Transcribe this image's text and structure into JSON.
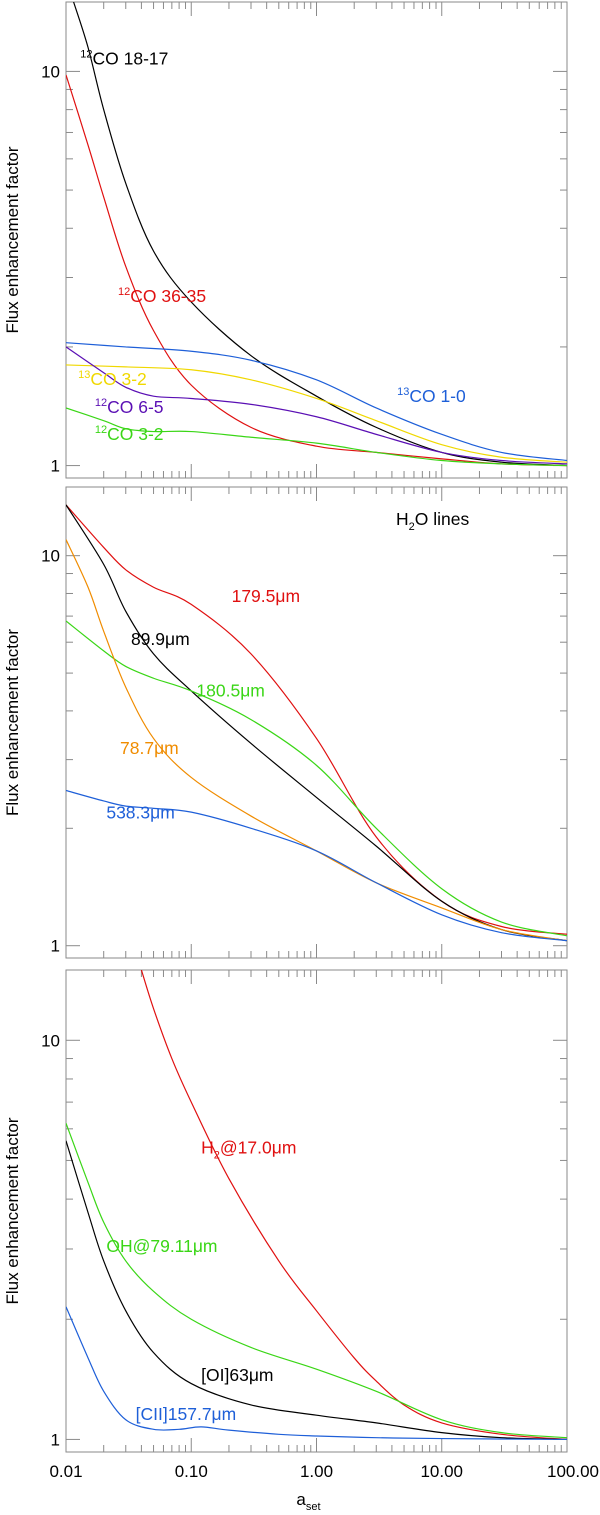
{
  "chart_data": [
    {
      "type": "line",
      "panel": "top",
      "title": "",
      "ylabel": "Flux enhancement factor",
      "xlabel": "",
      "xscale": "log",
      "yscale": "log",
      "xlim": [
        0.01,
        100
      ],
      "ylim": [
        0.93,
        15
      ],
      "yticks": [
        "1",
        "10"
      ],
      "colors": {
        "black": "#000000",
        "red": "#e01010",
        "blue": "#1e5fd8",
        "yellow": "#f0d800",
        "purple": "#5a0fb4",
        "green": "#3ad616",
        "orange": "#f08c00"
      },
      "series": [
        {
          "name": "12CO 18-17",
          "label_parts": [
            {
              "t": "12",
              "s": "sup"
            },
            {
              "t": "CO 18-17"
            }
          ],
          "color": "#000000",
          "x": [
            0.0115,
            0.015,
            0.02,
            0.03,
            0.05,
            0.1,
            0.3,
            1,
            3,
            10,
            30,
            100
          ],
          "y": [
            15,
            11.5,
            8,
            5.2,
            3.5,
            2.6,
            1.9,
            1.5,
            1.25,
            1.08,
            1.02,
            1.0
          ]
        },
        {
          "name": "12CO 36-35",
          "label_parts": [
            {
              "t": "12",
              "s": "sup"
            },
            {
              "t": "CO 36-35"
            }
          ],
          "color": "#e01010",
          "x": [
            0.01,
            0.015,
            0.02,
            0.03,
            0.05,
            0.1,
            0.3,
            1,
            3,
            10,
            30,
            100
          ],
          "y": [
            9.8,
            6.5,
            4.8,
            3.2,
            2.2,
            1.6,
            1.25,
            1.12,
            1.08,
            1.04,
            1.01,
            1.0
          ]
        },
        {
          "name": "13CO 1-0",
          "label_parts": [
            {
              "t": "13",
              "s": "sup"
            },
            {
              "t": "CO 1-0"
            }
          ],
          "color": "#1e5fd8",
          "x": [
            0.01,
            0.03,
            0.1,
            0.3,
            1,
            3,
            10,
            30,
            100
          ],
          "y": [
            2.05,
            2.0,
            1.95,
            1.85,
            1.65,
            1.4,
            1.2,
            1.08,
            1.03
          ]
        },
        {
          "name": "13CO 3-2",
          "label_parts": [
            {
              "t": "13",
              "s": "sup"
            },
            {
              "t": "CO 3-2"
            }
          ],
          "color": "#f0d800",
          "x": [
            0.01,
            0.03,
            0.1,
            0.3,
            1,
            3,
            10,
            30,
            100
          ],
          "y": [
            1.8,
            1.78,
            1.75,
            1.65,
            1.48,
            1.3,
            1.13,
            1.05,
            1.02
          ]
        },
        {
          "name": "12CO 6-5",
          "label_parts": [
            {
              "t": "12",
              "s": "sup"
            },
            {
              "t": "CO 6-5"
            }
          ],
          "color": "#5a0fb4",
          "x": [
            0.01,
            0.02,
            0.03,
            0.05,
            0.1,
            0.3,
            1,
            3,
            10,
            30,
            100
          ],
          "y": [
            2.0,
            1.72,
            1.58,
            1.5,
            1.48,
            1.43,
            1.33,
            1.2,
            1.08,
            1.03,
            1.01
          ]
        },
        {
          "name": "12CO 3-2",
          "label_parts": [
            {
              "t": "12",
              "s": "sup"
            },
            {
              "t": "CO 3-2"
            }
          ],
          "color": "#3ad616",
          "x": [
            0.01,
            0.02,
            0.03,
            0.05,
            0.1,
            0.3,
            1,
            3,
            10,
            30,
            100
          ],
          "y": [
            1.4,
            1.3,
            1.24,
            1.22,
            1.22,
            1.18,
            1.14,
            1.08,
            1.03,
            1.01,
            1.0
          ]
        }
      ],
      "labels": [
        {
          "series": "12CO 18-17",
          "x": 0.013,
          "y": 10.4
        },
        {
          "series": "12CO 36-35",
          "x": 0.026,
          "y": 2.6
        },
        {
          "series": "13CO 3-2",
          "x": 0.0125,
          "y": 1.6
        },
        {
          "series": "12CO 6-5",
          "x": 0.017,
          "y": 1.36
        },
        {
          "series": "12CO 3-2",
          "x": 0.017,
          "y": 1.16
        },
        {
          "series": "13CO 1-0",
          "x": 4.4,
          "y": 1.45
        }
      ]
    },
    {
      "type": "line",
      "panel": "middle",
      "title": "",
      "annotation_parts": [
        {
          "t": "H"
        },
        {
          "t": "2",
          "s": "sub"
        },
        {
          "t": "O lines"
        }
      ],
      "ylabel": "Flux enhancement factor",
      "xlabel": "",
      "xscale": "log",
      "yscale": "log",
      "xlim": [
        0.01,
        100
      ],
      "ylim": [
        0.93,
        15
      ],
      "yticks": [
        "1",
        "10"
      ],
      "series": [
        {
          "name": "179.5μm",
          "label_parts": [
            {
              "t": "179.5μm"
            }
          ],
          "color": "#e01010",
          "x": [
            0.01,
            0.02,
            0.03,
            0.05,
            0.1,
            0.3,
            1,
            3,
            10,
            30,
            100
          ],
          "y": [
            13.5,
            10.5,
            9.2,
            8.3,
            7.5,
            5.6,
            3.4,
            1.9,
            1.3,
            1.12,
            1.07
          ]
        },
        {
          "name": "89.9μm",
          "label_parts": [
            {
              "t": "89.9μm"
            }
          ],
          "color": "#000000",
          "x": [
            0.01,
            0.02,
            0.03,
            0.05,
            0.1,
            0.3,
            1,
            3,
            10,
            30,
            100
          ],
          "y": [
            13.5,
            9.5,
            7.2,
            5.6,
            4.5,
            3.3,
            2.4,
            1.8,
            1.3,
            1.1,
            1.03
          ]
        },
        {
          "name": "180.5μm",
          "label_parts": [
            {
              "t": "180.5μm"
            }
          ],
          "color": "#3ad616",
          "x": [
            0.01,
            0.02,
            0.03,
            0.05,
            0.1,
            0.3,
            1,
            3,
            10,
            30,
            100
          ],
          "y": [
            6.8,
            5.7,
            5.2,
            4.85,
            4.5,
            3.8,
            2.9,
            2.0,
            1.4,
            1.15,
            1.06
          ]
        },
        {
          "name": "78.7μm",
          "label_parts": [
            {
              "t": "78.7μm"
            }
          ],
          "color": "#f08c00",
          "x": [
            0.01,
            0.015,
            0.02,
            0.03,
            0.05,
            0.1,
            0.3,
            1,
            3,
            10,
            30,
            100
          ],
          "y": [
            11,
            8.3,
            6.4,
            4.6,
            3.4,
            2.7,
            2.15,
            1.75,
            1.45,
            1.25,
            1.1,
            1.03
          ]
        },
        {
          "name": "538.3μm",
          "label_parts": [
            {
              "t": "538.3μm"
            }
          ],
          "color": "#1e5fd8",
          "x": [
            0.01,
            0.02,
            0.03,
            0.05,
            0.1,
            0.3,
            1,
            3,
            10,
            30,
            100
          ],
          "y": [
            2.5,
            2.35,
            2.28,
            2.25,
            2.2,
            2.0,
            1.75,
            1.45,
            1.2,
            1.08,
            1.03
          ]
        }
      ],
      "labels": [
        {
          "series": "179.5μm",
          "x": 0.21,
          "y": 7.6
        },
        {
          "series": "89.9μm",
          "x": 0.033,
          "y": 5.9
        },
        {
          "series": "180.5μm",
          "x": 0.11,
          "y": 4.35
        },
        {
          "series": "78.7μm",
          "x": 0.027,
          "y": 3.1
        },
        {
          "series": "538.3μm",
          "x": 0.021,
          "y": 2.12
        }
      ]
    },
    {
      "type": "line",
      "panel": "bottom",
      "title": "",
      "ylabel": "Flux enhancement factor",
      "xlabel": "a_set",
      "xlabel_parts": [
        {
          "t": "a"
        },
        {
          "t": "set",
          "s": "sub"
        }
      ],
      "xscale": "log",
      "yscale": "log",
      "xlim": [
        0.01,
        100
      ],
      "ylim": [
        0.93,
        15
      ],
      "yticks": [
        "1",
        "10"
      ],
      "xticks": [
        "0.01",
        "0.10",
        "1.00",
        "10.00",
        "100.00"
      ],
      "series": [
        {
          "name": "H2@17.0μm",
          "label_parts": [
            {
              "t": "H"
            },
            {
              "t": "2",
              "s": "sub"
            },
            {
              "t": "@17.0μm"
            }
          ],
          "color": "#e01010",
          "x": [
            0.04,
            0.05,
            0.07,
            0.1,
            0.2,
            0.5,
            1,
            2,
            3,
            5,
            10,
            30,
            100
          ],
          "y": [
            15,
            12,
            9,
            7,
            4.5,
            2.8,
            2.1,
            1.6,
            1.4,
            1.22,
            1.1,
            1.03,
            1.0
          ]
        },
        {
          "name": "OH@79.11μm",
          "label_parts": [
            {
              "t": "OH@79.11μm"
            }
          ],
          "color": "#3ad616",
          "x": [
            0.01,
            0.015,
            0.02,
            0.03,
            0.05,
            0.1,
            0.3,
            1,
            3,
            10,
            30,
            100
          ],
          "y": [
            6.2,
            4.4,
            3.5,
            2.8,
            2.35,
            2.0,
            1.7,
            1.5,
            1.32,
            1.12,
            1.04,
            1.01
          ]
        },
        {
          "name": "[OI]63μm",
          "label_parts": [
            {
              "t": "[OI]63μm"
            }
          ],
          "color": "#000000",
          "x": [
            0.01,
            0.015,
            0.02,
            0.03,
            0.05,
            0.1,
            0.3,
            1,
            3,
            10,
            30,
            100
          ],
          "y": [
            5.6,
            3.7,
            2.8,
            2.1,
            1.65,
            1.38,
            1.22,
            1.15,
            1.1,
            1.04,
            1.01,
            1.0
          ]
        },
        {
          "name": "[CII]157.7μm",
          "label_parts": [
            {
              "t": "[CII]157.7μm"
            }
          ],
          "color": "#1e5fd8",
          "x": [
            0.01,
            0.015,
            0.02,
            0.03,
            0.05,
            0.08,
            0.12,
            0.2,
            0.5,
            1,
            3,
            10,
            100
          ],
          "y": [
            2.15,
            1.6,
            1.32,
            1.12,
            1.06,
            1.06,
            1.075,
            1.055,
            1.03,
            1.02,
            1.01,
            1.005,
            1.0
          ]
        }
      ],
      "labels": [
        {
          "series": "H2@17.0μm",
          "x": 0.12,
          "y": 5.2
        },
        {
          "series": "OH@79.11μm",
          "x": 0.021,
          "y": 2.95
        },
        {
          "series": "[OI]63μm",
          "x": 0.12,
          "y": 1.4
        },
        {
          "series": "[CII]157.7μm",
          "x": 0.036,
          "y": 1.12
        }
      ]
    }
  ]
}
